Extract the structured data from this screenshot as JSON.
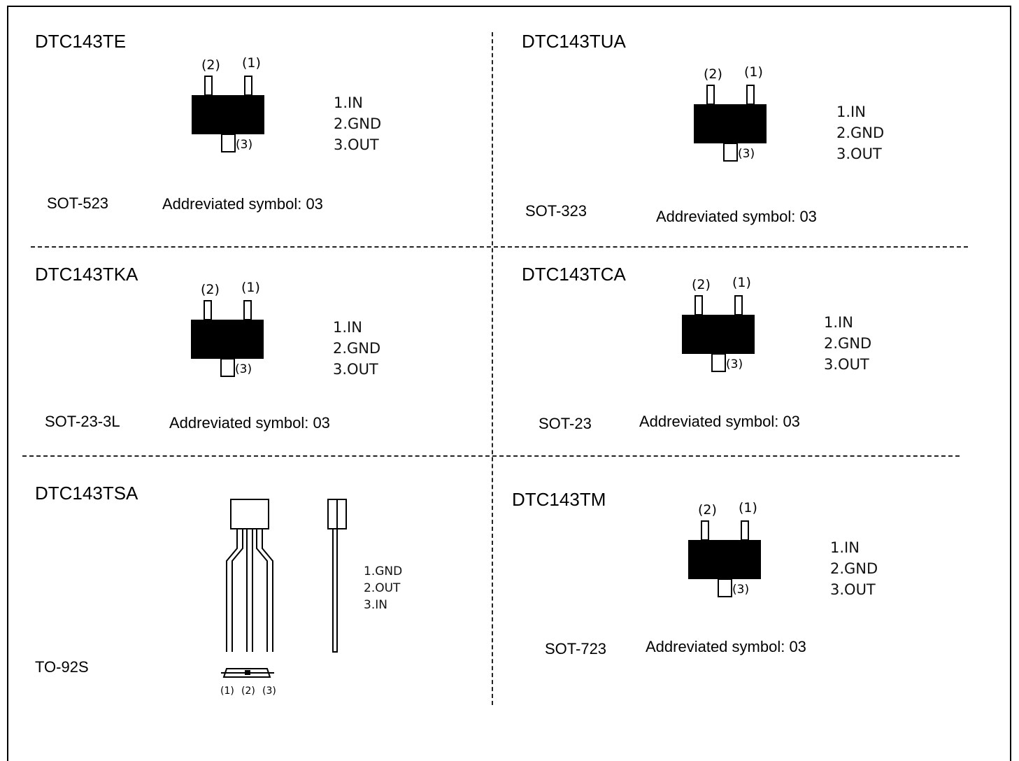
{
  "labels": {
    "abbr_prefix": "Addreviated symbol: ",
    "lead1": "(1)",
    "lead2": "(2)",
    "lead3": "(3)"
  },
  "packages": [
    {
      "part": "DTC143TE",
      "package": "SOT-523",
      "symbol": "03",
      "pins": [
        "1.IN",
        "2.GND",
        "3.OUT"
      ]
    },
    {
      "part": "DTC143TUA",
      "package": "SOT-323",
      "symbol": "03",
      "pins": [
        "1.IN",
        "2.GND",
        "3.OUT"
      ]
    },
    {
      "part": "DTC143TKA",
      "package": "SOT-23-3L",
      "symbol": "03",
      "pins": [
        "1.IN",
        "2.GND",
        "3.OUT"
      ]
    },
    {
      "part": "DTC143TCA",
      "package": "SOT-23",
      "symbol": "03",
      "pins": [
        "1.IN",
        "2.GND",
        "3.OUT"
      ]
    },
    {
      "part": "DTC143TSA",
      "package": "TO-92S",
      "symbol": "",
      "pins": [
        "1.GND",
        "2.OUT",
        "3.IN"
      ]
    },
    {
      "part": "DTC143TM",
      "package": "SOT-723",
      "symbol": "03",
      "pins": [
        "1.IN",
        "2.GND",
        "3.OUT"
      ]
    }
  ]
}
